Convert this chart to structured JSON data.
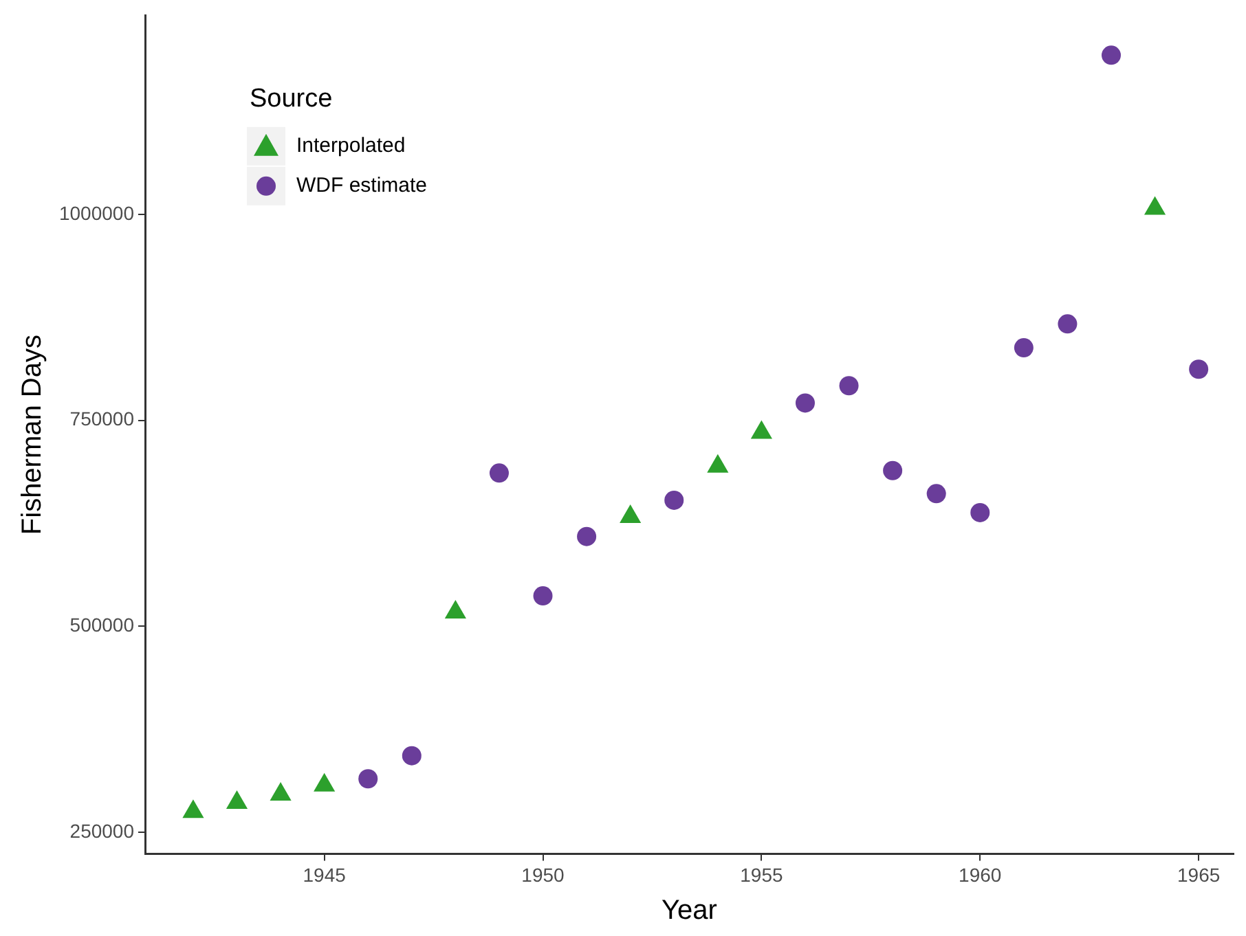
{
  "chart_data": {
    "type": "scatter",
    "xlabel": "Year",
    "ylabel": "Fisherman Days",
    "legend_title": "Source",
    "legend": "top left",
    "grid": false,
    "xlim": [
      1940.9,
      1965.8
    ],
    "xticks": [
      1945,
      1950,
      1955,
      1960,
      1965
    ],
    "ylim": [
      224000,
      1241000
    ],
    "yticks": [
      250000,
      500000,
      750000,
      1000000
    ],
    "series": [
      {
        "name": "Interpolated",
        "color": "#2ca02c",
        "marker": "triangle",
        "x": [
          1942,
          1943,
          1944,
          1945,
          1948,
          1952,
          1954,
          1955,
          1964
        ],
        "values": [
          275000,
          286000,
          296000,
          307000,
          517000,
          633000,
          694000,
          735000,
          1007000
        ]
      },
      {
        "name": "WDF estimate",
        "color": "#6a3d9a",
        "marker": "circle",
        "x": [
          1946,
          1947,
          1949,
          1950,
          1951,
          1953,
          1956,
          1957,
          1958,
          1959,
          1960,
          1961,
          1962,
          1963,
          1965
        ],
        "values": [
          315000,
          343000,
          686000,
          537000,
          609000,
          653000,
          771000,
          792000,
          689000,
          661000,
          638000,
          838000,
          867000,
          1193000,
          812000
        ]
      }
    ]
  }
}
